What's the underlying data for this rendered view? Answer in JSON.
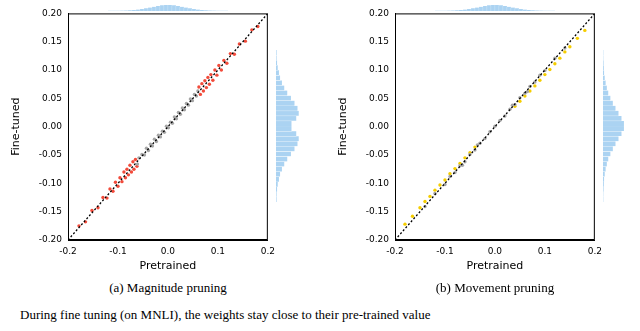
{
  "chart_data": [
    {
      "type": "scatter",
      "title": "(a) Magnitude pruning",
      "x_label": "Pretrained",
      "y_label": "Fine-tuned",
      "xlim": [
        -0.2,
        0.2
      ],
      "ylim": [
        -0.2,
        0.2
      ],
      "grid": false,
      "xticks": [
        -0.2,
        -0.1,
        {
          "value": 0,
          "label": "0.0"
        },
        0.1,
        0.2
      ],
      "yticks": [
        {
          "value": -0.2,
          "label": "-0.20"
        },
        -0.15,
        {
          "value": -0.1,
          "label": "-0.10"
        },
        -0.05,
        {
          "value": 0,
          "label": "0.00"
        },
        0.05,
        {
          "value": 0.1,
          "label": "0.10"
        },
        0.15,
        {
          "value": 0.2,
          "label": "0.20"
        }
      ],
      "series": [
        {
          "type": "scatter",
          "color": "#a6a6a6",
          "marker": "circle",
          "x": [
            -0.061,
            -0.058,
            -0.052,
            -0.047,
            -0.043,
            -0.039,
            -0.035,
            -0.031,
            -0.027,
            -0.023,
            -0.019,
            -0.015,
            -0.011,
            -0.007,
            -0.003,
            0.001,
            0.005,
            0.009,
            0.013,
            0.017,
            0.021,
            0.025,
            0.029,
            0.033,
            0.037,
            0.041,
            0.045,
            0.049,
            0.053,
            0.057,
            0.06
          ],
          "values": [
            -0.066,
            -0.055,
            -0.049,
            -0.05,
            -0.038,
            -0.042,
            -0.031,
            -0.034,
            -0.022,
            -0.026,
            -0.015,
            -0.018,
            -0.008,
            -0.01,
            0.001,
            -0.002,
            0.008,
            0.006,
            0.017,
            0.014,
            0.025,
            0.022,
            0.033,
            0.03,
            0.041,
            0.038,
            0.049,
            0.046,
            0.057,
            0.054,
            0.063
          ]
        },
        {
          "type": "scatter",
          "color": "#f24b3b",
          "marker": "circle",
          "x": [
            -0.062,
            -0.065,
            -0.068,
            -0.07,
            -0.073,
            -0.076,
            -0.079,
            -0.082,
            -0.085,
            -0.088,
            -0.092,
            -0.096,
            -0.1,
            -0.105,
            -0.11,
            -0.116,
            -0.122,
            -0.13,
            -0.14,
            -0.152,
            -0.165,
            -0.178,
            0.062,
            0.065,
            0.068,
            0.071,
            0.074,
            0.077,
            0.08,
            0.083,
            0.086,
            0.09,
            0.094,
            0.098,
            0.102,
            0.107,
            0.112,
            0.118,
            0.125,
            0.133,
            0.143,
            0.155,
            0.168,
            0.18
          ],
          "values": [
            -0.07,
            -0.058,
            -0.075,
            -0.062,
            -0.08,
            -0.068,
            -0.085,
            -0.075,
            -0.09,
            -0.08,
            -0.097,
            -0.09,
            -0.105,
            -0.098,
            -0.114,
            -0.11,
            -0.126,
            -0.125,
            -0.143,
            -0.148,
            -0.168,
            -0.175,
            0.07,
            0.057,
            0.076,
            0.063,
            0.081,
            0.069,
            0.087,
            0.075,
            0.092,
            0.082,
            0.1,
            0.091,
            0.108,
            0.1,
            0.117,
            0.112,
            0.129,
            0.128,
            0.146,
            0.151,
            0.171,
            0.177
          ]
        },
        {
          "type": "line",
          "color": "#000000",
          "line_style": "dotted",
          "x": [
            -0.2,
            0.2
          ],
          "values": [
            -0.2,
            0.2
          ]
        }
      ],
      "x_histogram": {
        "color": "#abd3f2",
        "bins": [
          -0.2,
          -0.19,
          -0.18,
          -0.17,
          -0.16,
          -0.15,
          -0.14,
          -0.13,
          -0.12,
          -0.11,
          -0.1,
          -0.09,
          -0.08,
          -0.07,
          -0.06,
          -0.05,
          -0.04,
          -0.03,
          -0.02,
          -0.01,
          0,
          0.01,
          0.02,
          0.03,
          0.04,
          0.05,
          0.06,
          0.07,
          0.08,
          0.09,
          0.1,
          0.11,
          0.12,
          0.13,
          0.14,
          0.15,
          0.16,
          0.17,
          0.18,
          0.19,
          0.2
        ],
        "counts": [
          0,
          0,
          0,
          0,
          0,
          1,
          1,
          2,
          3,
          5,
          7,
          10,
          14,
          19,
          25,
          32,
          39,
          46,
          52,
          56,
          56,
          52,
          46,
          39,
          32,
          25,
          19,
          14,
          10,
          7,
          5,
          3,
          2,
          1,
          1,
          0,
          0,
          0,
          0,
          0
        ]
      },
      "y_histogram": {
        "color": "#abd3f2",
        "bins": [
          -0.2,
          -0.19,
          -0.18,
          -0.17,
          -0.16,
          -0.15,
          -0.14,
          -0.13,
          -0.12,
          -0.11,
          -0.1,
          -0.09,
          -0.08,
          -0.07,
          -0.06,
          -0.05,
          -0.04,
          -0.03,
          -0.02,
          -0.01,
          0,
          0.01,
          0.02,
          0.03,
          0.04,
          0.05,
          0.06,
          0.07,
          0.08,
          0.09,
          0.1,
          0.11,
          0.12,
          0.13,
          0.14,
          0.15,
          0.16,
          0.17,
          0.18,
          0.19,
          0.2
        ],
        "counts": [
          0,
          0,
          0,
          0,
          0,
          1,
          1,
          2,
          3,
          5,
          7,
          10,
          14,
          19,
          25,
          31,
          36,
          38,
          34,
          26,
          26,
          34,
          38,
          36,
          31,
          25,
          19,
          14,
          10,
          7,
          5,
          3,
          2,
          1,
          1,
          0,
          0,
          0,
          0,
          0
        ]
      }
    },
    {
      "type": "scatter",
      "title": "(b) Movement pruning",
      "x_label": "Pretrained",
      "y_label": "Fine-tuned",
      "xlim": [
        -0.2,
        0.2
      ],
      "ylim": [
        -0.2,
        0.2
      ],
      "grid": false,
      "xticks": [
        -0.2,
        -0.1,
        {
          "value": 0,
          "label": "0.0"
        },
        0.1,
        0.2
      ],
      "yticks": [
        {
          "value": -0.2,
          "label": "-0.20"
        },
        -0.15,
        {
          "value": -0.1,
          "label": "-0.10"
        },
        -0.05,
        {
          "value": 0,
          "label": "0.00"
        },
        0.05,
        {
          "value": 0.1,
          "label": "0.10"
        },
        0.15,
        {
          "value": 0.2,
          "label": "0.20"
        }
      ],
      "series": [
        {
          "type": "scatter",
          "color": "#a6a6a6",
          "marker": "circle",
          "x": [
            -0.14,
            -0.12,
            -0.1,
            -0.09,
            -0.08,
            -0.07,
            -0.065,
            -0.06,
            -0.05,
            -0.04,
            -0.035,
            -0.03,
            -0.02,
            -0.01,
            0,
            0.01,
            0.02,
            0.03,
            0.035,
            0.04,
            0.05,
            0.06,
            0.065,
            0.07,
            0.08,
            0.09,
            0.1,
            0.12,
            0.14
          ],
          "values": [
            -0.141,
            -0.118,
            -0.102,
            -0.088,
            -0.081,
            -0.069,
            -0.068,
            -0.062,
            -0.049,
            -0.041,
            -0.032,
            -0.029,
            -0.021,
            -0.009,
            0.001,
            0.011,
            0.019,
            0.031,
            0.038,
            0.039,
            0.051,
            0.059,
            0.062,
            0.071,
            0.079,
            0.091,
            0.099,
            0.121,
            0.139
          ]
        },
        {
          "type": "scatter",
          "color": "#f5cd00",
          "marker": "circle",
          "x": [
            -0.18,
            -0.165,
            -0.15,
            -0.14,
            -0.13,
            -0.12,
            -0.11,
            -0.1,
            -0.09,
            -0.08,
            -0.07,
            -0.06,
            -0.05,
            -0.04,
            0.04,
            0.05,
            0.06,
            0.07,
            0.08,
            0.09,
            0.1,
            0.11,
            0.12,
            0.13,
            0.14,
            0.15,
            0.165,
            0.18
          ],
          "values": [
            -0.172,
            -0.158,
            -0.143,
            -0.132,
            -0.123,
            -0.112,
            -0.103,
            -0.094,
            -0.083,
            -0.074,
            -0.065,
            -0.055,
            -0.046,
            -0.036,
            0.036,
            0.045,
            0.054,
            0.063,
            0.072,
            0.082,
            0.092,
            0.101,
            0.111,
            0.121,
            0.132,
            0.141,
            0.156,
            0.17
          ]
        },
        {
          "type": "line",
          "color": "#000000",
          "line_style": "dotted",
          "x": [
            -0.2,
            0.2
          ],
          "values": [
            -0.2,
            0.2
          ]
        }
      ],
      "x_histogram": {
        "color": "#abd3f2",
        "bins": [
          -0.2,
          -0.19,
          -0.18,
          -0.17,
          -0.16,
          -0.15,
          -0.14,
          -0.13,
          -0.12,
          -0.11,
          -0.1,
          -0.09,
          -0.08,
          -0.07,
          -0.06,
          -0.05,
          -0.04,
          -0.03,
          -0.02,
          -0.01,
          0,
          0.01,
          0.02,
          0.03,
          0.04,
          0.05,
          0.06,
          0.07,
          0.08,
          0.09,
          0.1,
          0.11,
          0.12,
          0.13,
          0.14,
          0.15,
          0.16,
          0.17,
          0.18,
          0.19,
          0.2
        ],
        "counts": [
          0,
          0,
          0,
          0,
          0,
          1,
          1,
          2,
          3,
          5,
          7,
          10,
          14,
          19,
          25,
          32,
          39,
          46,
          52,
          56,
          56,
          52,
          46,
          39,
          32,
          25,
          19,
          14,
          10,
          7,
          5,
          3,
          2,
          1,
          1,
          0,
          0,
          0,
          0,
          0
        ]
      },
      "y_histogram": {
        "color": "#abd3f2",
        "bins": [
          -0.2,
          -0.19,
          -0.18,
          -0.17,
          -0.16,
          -0.15,
          -0.14,
          -0.13,
          -0.12,
          -0.11,
          -0.1,
          -0.09,
          -0.08,
          -0.07,
          -0.06,
          -0.05,
          -0.04,
          -0.03,
          -0.02,
          -0.01,
          0,
          0.01,
          0.02,
          0.03,
          0.04,
          0.05,
          0.06,
          0.07,
          0.08,
          0.09,
          0.1,
          0.11,
          0.12,
          0.13,
          0.14,
          0.15,
          0.16,
          0.17,
          0.18,
          0.19,
          0.2
        ],
        "counts": [
          0,
          0,
          0,
          0,
          0,
          1,
          1,
          2,
          3,
          4,
          6,
          9,
          13,
          18,
          25,
          33,
          42,
          52,
          62,
          70,
          70,
          62,
          52,
          42,
          33,
          25,
          18,
          13,
          9,
          6,
          4,
          3,
          2,
          1,
          1,
          0,
          0,
          0,
          0,
          0
        ]
      }
    }
  ],
  "caption": "During fine tuning (on MNLI), the weights stay close to their pre-trained value"
}
